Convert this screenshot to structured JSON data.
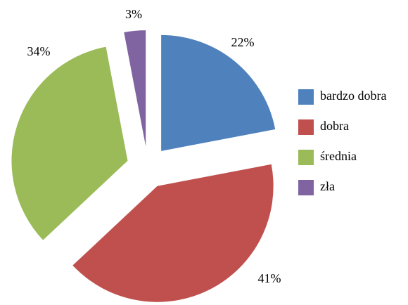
{
  "chart_data": {
    "type": "pie",
    "categories": [
      "bardzo dobra",
      "dobra",
      "średnia",
      "zła"
    ],
    "values": [
      22,
      41,
      34,
      3
    ],
    "value_labels": [
      "22%",
      "41%",
      "34%",
      "3%"
    ],
    "colors": [
      "#4f81bd",
      "#c0504d",
      "#9bbb59",
      "#8064a2"
    ],
    "legend": "right"
  }
}
